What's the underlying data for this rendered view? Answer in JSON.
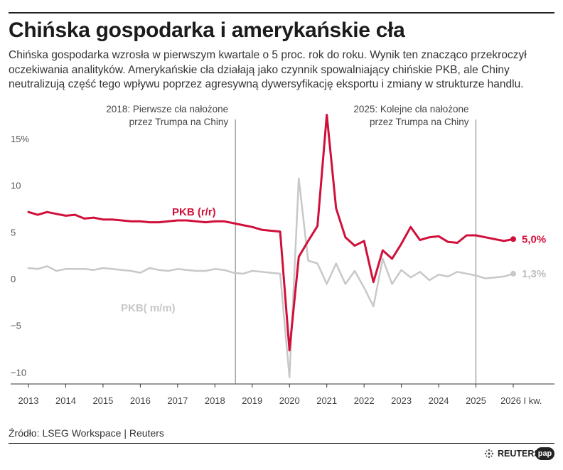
{
  "header": {
    "title": "Chińska gospodarka i amerykańskie cła",
    "subtitle": "Chińska gospodarka wzrosła w pierwszym kwartale o 5 proc. rok do roku. Wynik ten znacząco przekroczył oczekiwania analityków. Amerykańskie cła działają jako czynnik spowalniający chińskie PKB, ale Chiny neutralizują część tego wpływu poprzez agresywną dywersyfikację eksportu i zmiany w strukturze handlu."
  },
  "footer": {
    "source": "Źródło: LSEG Workspace | Reuters",
    "logo_reuters": "REUTERS",
    "logo_pap": "pap"
  },
  "chart_data": {
    "type": "line",
    "xlim": [
      2013.0,
      2026.0
    ],
    "ylim": [
      -10.5,
      17.5
    ],
    "grid": false,
    "y_ticks": [
      {
        "value": 15,
        "label": "15%"
      },
      {
        "value": 10,
        "label": "10"
      },
      {
        "value": 5,
        "label": "5"
      },
      {
        "value": 0,
        "label": "0"
      },
      {
        "value": -5,
        "label": "−5"
      },
      {
        "value": -10,
        "label": "−10"
      }
    ],
    "x_ticks": [
      {
        "value": 2013,
        "label": "2013"
      },
      {
        "value": 2014,
        "label": "2014"
      },
      {
        "value": 2015,
        "label": "2015"
      },
      {
        "value": 2016,
        "label": "2016"
      },
      {
        "value": 2017,
        "label": "2017"
      },
      {
        "value": 2018,
        "label": "2018"
      },
      {
        "value": 2019,
        "label": "2019"
      },
      {
        "value": 2020,
        "label": "2020"
      },
      {
        "value": 2021,
        "label": "2021"
      },
      {
        "value": 2022,
        "label": "2022"
      },
      {
        "value": 2023,
        "label": "2023"
      },
      {
        "value": 2024,
        "label": "2024"
      },
      {
        "value": 2025,
        "label": "2025"
      },
      {
        "value": 2026,
        "label": "2026 I kw."
      }
    ],
    "annotations": [
      {
        "x": 2018.55,
        "lines": [
          "2018: Pierwsze cła nałożone",
          "przez Trumpa na Chiny"
        ]
      },
      {
        "x": 2025.0,
        "lines": [
          "2025: Kolejne cła nałożone",
          "przez Trumpa na Chiny"
        ]
      }
    ],
    "series": [
      {
        "name": "PKB (r/r)",
        "color": "#d0103a",
        "end_label": "5,0%",
        "x": [
          2013.0,
          2013.25,
          2013.5,
          2013.75,
          2014.0,
          2014.25,
          2014.5,
          2014.75,
          2015.0,
          2015.25,
          2015.5,
          2015.75,
          2016.0,
          2016.25,
          2016.5,
          2016.75,
          2017.0,
          2017.25,
          2017.5,
          2017.75,
          2018.0,
          2018.25,
          2018.5,
          2018.75,
          2019.0,
          2019.25,
          2019.5,
          2019.75,
          2020.0,
          2020.25,
          2020.5,
          2020.75,
          2021.0,
          2021.25,
          2021.5,
          2021.75,
          2022.0,
          2022.25,
          2022.5,
          2022.75,
          2023.0,
          2023.25,
          2023.5,
          2023.75,
          2024.0,
          2024.25,
          2024.5,
          2024.75,
          2025.0,
          2025.25,
          2025.5,
          2025.75,
          2026.0
        ],
        "values": [
          7.9,
          7.6,
          7.9,
          7.7,
          7.5,
          7.6,
          7.2,
          7.3,
          7.1,
          7.1,
          7.0,
          6.9,
          6.9,
          6.8,
          6.8,
          6.9,
          7.0,
          7.0,
          6.9,
          6.8,
          6.9,
          6.9,
          6.7,
          6.5,
          6.3,
          6.0,
          5.9,
          5.8,
          -6.9,
          3.1,
          4.8,
          6.4,
          18.3,
          8.3,
          5.2,
          4.3,
          4.8,
          0.4,
          3.8,
          2.9,
          4.5,
          6.3,
          4.9,
          5.2,
          5.3,
          4.7,
          4.6,
          5.4,
          5.4,
          5.2,
          5.0,
          4.8,
          5.0
        ]
      },
      {
        "name": "PKB( m/m)",
        "color": "#c8c8c8",
        "end_label": "1,3%",
        "x": [
          2013.0,
          2013.25,
          2013.5,
          2013.75,
          2014.0,
          2014.25,
          2014.5,
          2014.75,
          2015.0,
          2015.25,
          2015.5,
          2015.75,
          2016.0,
          2016.25,
          2016.5,
          2016.75,
          2017.0,
          2017.25,
          2017.5,
          2017.75,
          2018.0,
          2018.25,
          2018.5,
          2018.75,
          2019.0,
          2019.25,
          2019.5,
          2019.75,
          2020.0,
          2020.25,
          2020.5,
          2020.75,
          2021.0,
          2021.25,
          2021.5,
          2021.75,
          2022.0,
          2022.25,
          2022.5,
          2022.75,
          2023.0,
          2023.25,
          2023.5,
          2023.75,
          2024.0,
          2024.25,
          2024.5,
          2024.75,
          2025.0,
          2025.25,
          2025.5,
          2025.75,
          2026.0
        ],
        "values": [
          1.9,
          1.8,
          2.1,
          1.6,
          1.8,
          1.8,
          1.8,
          1.7,
          1.9,
          1.8,
          1.7,
          1.6,
          1.4,
          1.9,
          1.7,
          1.6,
          1.8,
          1.7,
          1.6,
          1.6,
          1.8,
          1.7,
          1.4,
          1.3,
          1.6,
          1.5,
          1.4,
          1.3,
          -9.8,
          11.5,
          2.7,
          2.4,
          0.2,
          2.4,
          0.2,
          1.6,
          -0.2,
          -2.2,
          2.9,
          0.2,
          1.7,
          0.9,
          1.5,
          0.6,
          1.2,
          1.0,
          1.5,
          1.3,
          1.1,
          0.8,
          0.9,
          1.0,
          1.3
        ]
      }
    ]
  }
}
